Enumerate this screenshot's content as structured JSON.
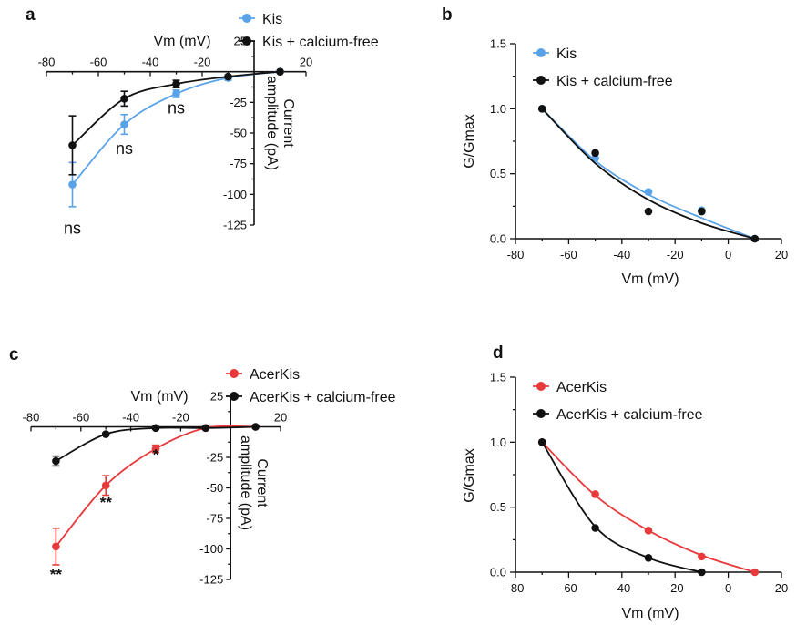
{
  "chart_data": [
    {
      "panel": "a",
      "type": "line",
      "title": "",
      "xlabel": "Vm (mV)",
      "ylabel": "Current amplitude (pA)",
      "xlim": [
        -80,
        20
      ],
      "ylim": [
        -125,
        25
      ],
      "xticks": [
        "-80",
        "-60",
        "-40",
        "-20",
        "20"
      ],
      "yticks": [
        "25",
        "-25",
        "-50",
        "-75",
        "-100",
        "-125"
      ],
      "legend": "top-right",
      "annotation_color": "#111111",
      "series": [
        {
          "name": "Kis",
          "color": "#5aa2e8",
          "x": [
            -70,
            -50,
            -30,
            -10,
            10
          ],
          "y": [
            -92,
            -43,
            -18,
            -5,
            0
          ],
          "err": [
            18,
            8,
            3,
            2,
            0
          ]
        },
        {
          "name": "Kis + calcium-free",
          "color": "#111111",
          "x": [
            -70,
            -50,
            -30,
            -10,
            10
          ],
          "y": [
            -60,
            -22,
            -10,
            -4,
            0
          ],
          "err": [
            24,
            6,
            3,
            1,
            0
          ]
        }
      ],
      "annotations": [
        {
          "text": "ns",
          "x": -70,
          "y": -132
        },
        {
          "text": "ns",
          "x": -50,
          "y": -67
        },
        {
          "text": "ns",
          "x": -30,
          "y": -34
        }
      ]
    },
    {
      "panel": "b",
      "type": "scatter",
      "title": "",
      "xlabel": "Vm (mV)",
      "ylabel": "G/Gmax",
      "xlim": [
        -80,
        20
      ],
      "ylim": [
        0,
        1.5
      ],
      "xticks": [
        "-80",
        "-60",
        "-40",
        "-20",
        "0",
        "20"
      ],
      "yticks": [
        "0.0",
        "0.5",
        "1.0",
        "1.5"
      ],
      "legend": "top-left",
      "series": [
        {
          "name": "Kis",
          "color": "#5aa2e8",
          "x": [
            -70,
            -50,
            -30,
            -10,
            10
          ],
          "y": [
            1.0,
            0.62,
            0.36,
            0.22,
            0.0
          ],
          "fit": [
            1.0,
            0.6,
            0.34,
            0.16,
            0.0
          ]
        },
        {
          "name": "Kis + calcium-free",
          "color": "#111111",
          "x": [
            -70,
            -50,
            -30,
            -10,
            10
          ],
          "y": [
            1.0,
            0.66,
            0.21,
            0.21,
            0.0
          ],
          "fit": [
            1.0,
            0.58,
            0.3,
            0.12,
            0.0
          ]
        }
      ]
    },
    {
      "panel": "c",
      "type": "line",
      "title": "",
      "xlabel": "Vm (mV)",
      "ylabel": "Current amplitude (pA)",
      "xlim": [
        -80,
        20
      ],
      "ylim": [
        -125,
        25
      ],
      "xticks": [
        "-80",
        "-60",
        "-40",
        "-20",
        "20"
      ],
      "yticks": [
        "25",
        "-25",
        "-50",
        "-75",
        "-100",
        "-125"
      ],
      "legend": "top-right",
      "annotation_color": "#111111",
      "series": [
        {
          "name": "AcerKis",
          "color": "#e8393b",
          "x": [
            -70,
            -50,
            -30,
            -10,
            10
          ],
          "y": [
            -98,
            -48,
            -18,
            -1,
            0
          ],
          "err": [
            15,
            8,
            3,
            1,
            0
          ]
        },
        {
          "name": "AcerKis + calcium-free",
          "color": "#111111",
          "x": [
            -70,
            -50,
            -30,
            -10,
            10
          ],
          "y": [
            -28,
            -6,
            -1,
            -1,
            0
          ],
          "err": [
            4,
            1,
            1,
            1,
            0
          ]
        }
      ],
      "annotations": [
        {
          "text": "**",
          "x": -70,
          "y": -125
        },
        {
          "text": "**",
          "x": -50,
          "y": -66
        },
        {
          "text": "*",
          "x": -30,
          "y": -27
        }
      ]
    },
    {
      "panel": "d",
      "type": "scatter",
      "title": "",
      "xlabel": "Vm (mV)",
      "ylabel": "G/Gmax",
      "xlim": [
        -80,
        20
      ],
      "ylim": [
        0,
        1.5
      ],
      "xticks": [
        "-80",
        "-60",
        "-40",
        "-20",
        "0",
        "20"
      ],
      "yticks": [
        "0.0",
        "0.5",
        "1.0",
        "1.5"
      ],
      "legend": "top-left",
      "series": [
        {
          "name": "AcerKis",
          "color": "#e8393b",
          "x": [
            -70,
            -50,
            -30,
            -10,
            10
          ],
          "y": [
            1.0,
            0.6,
            0.32,
            0.12,
            0.0
          ],
          "fit": [
            1.0,
            0.59,
            0.32,
            0.13,
            0.0
          ]
        },
        {
          "name": "AcerKis + calcium-free",
          "color": "#111111",
          "x": [
            -70,
            -50,
            -30,
            -10
          ],
          "y": [
            1.0,
            0.34,
            0.11,
            0.0
          ],
          "fit": [
            1.0,
            0.35,
            0.11,
            0.0
          ]
        }
      ]
    }
  ]
}
